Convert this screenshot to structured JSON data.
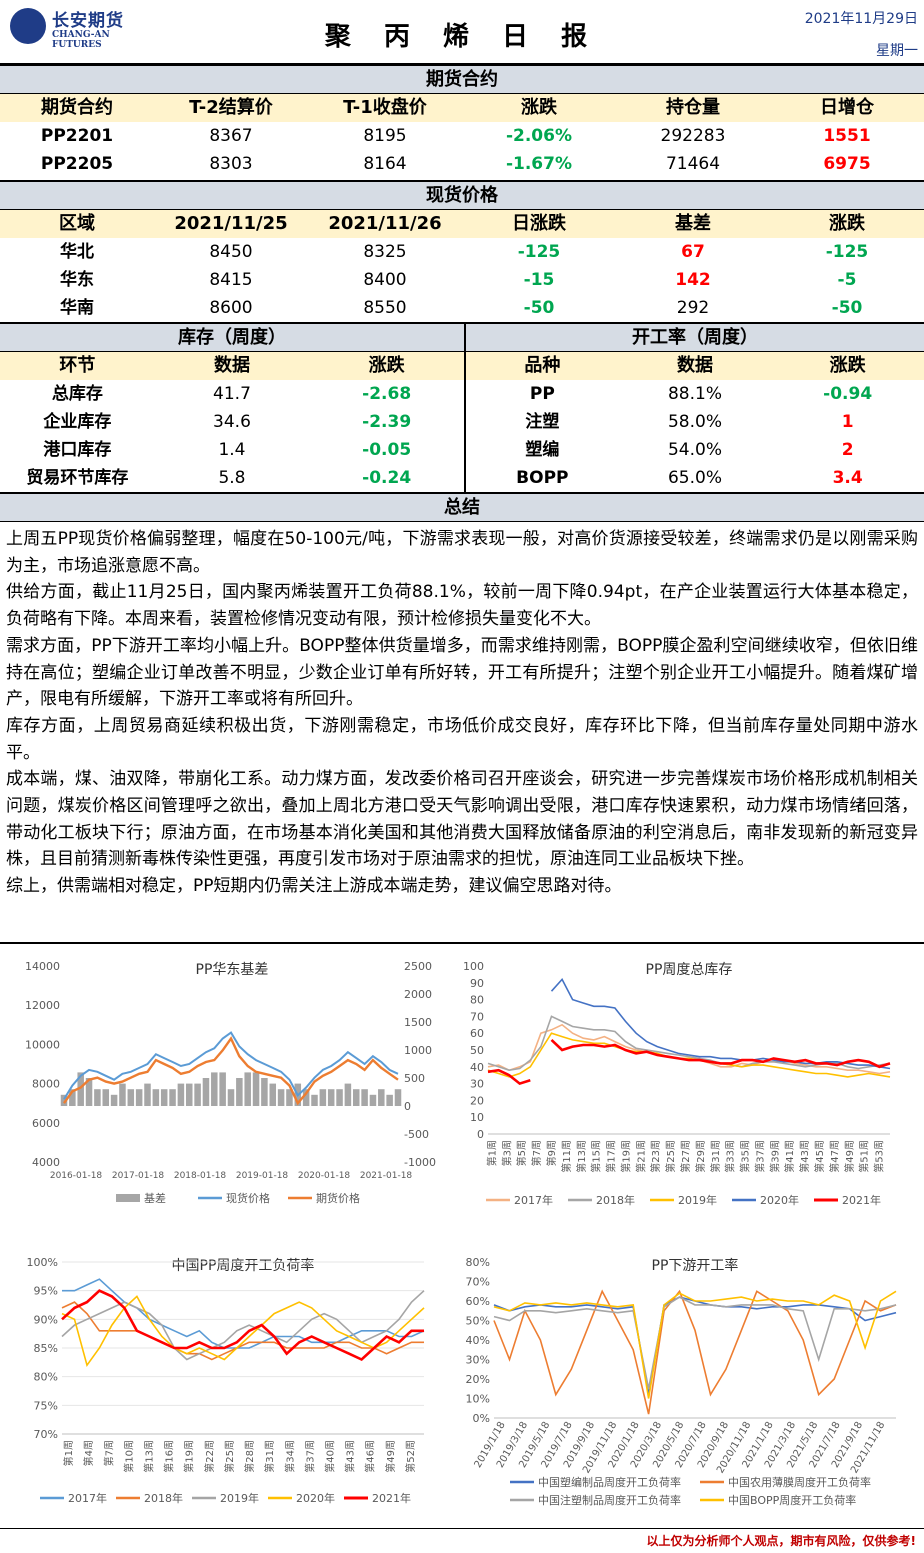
{
  "header": {
    "logo_cn": "长安期货",
    "logo_en": "CHANG-AN FUTURES",
    "title": "聚 丙 烯 日 报",
    "date": "2021年11月29日",
    "weekday": "星期一"
  },
  "futures": {
    "title": "期货合约",
    "columns": [
      "期货合约",
      "T-2结算价",
      "T-1收盘价",
      "涨跌",
      "持仓量",
      "日增仓"
    ],
    "rows": [
      {
        "contract": "PP2201",
        "settle": "8367",
        "close": "8195",
        "change": "-2.06%",
        "oi": "292283",
        "oi_change": "1551"
      },
      {
        "contract": "PP2205",
        "settle": "8303",
        "close": "8164",
        "change": "-1.67%",
        "oi": "71464",
        "oi_change": "6975"
      }
    ]
  },
  "spot": {
    "title": "现货价格",
    "columns": [
      "区域",
      "2021/11/25",
      "2021/11/26",
      "日涨跌",
      "基差",
      "涨跌"
    ],
    "rows": [
      {
        "region": "华北",
        "p1": "8450",
        "p2": "8325",
        "chg": "-125",
        "basis": "67",
        "basis_chg": "-125"
      },
      {
        "region": "华东",
        "p1": "8415",
        "p2": "8400",
        "chg": "-15",
        "basis": "142",
        "basis_chg": "-5"
      },
      {
        "region": "华南",
        "p1": "8600",
        "p2": "8550",
        "chg": "-50",
        "basis": "292",
        "basis_chg": "-50"
      }
    ]
  },
  "inventory": {
    "title": "库存（周度）",
    "columns": [
      "环节",
      "数据",
      "涨跌"
    ],
    "rows": [
      {
        "name": "总库存",
        "value": "41.7",
        "chg": "-2.68"
      },
      {
        "name": "企业库存",
        "value": "34.6",
        "chg": "-2.39"
      },
      {
        "name": "港口库存",
        "value": "1.4",
        "chg": "-0.05"
      },
      {
        "name": "贸易环节库存",
        "value": "5.8",
        "chg": "-0.24"
      }
    ]
  },
  "operating": {
    "title": "开工率（周度）",
    "columns": [
      "品种",
      "数据",
      "涨跌"
    ],
    "rows": [
      {
        "name": "PP",
        "value": "88.1%",
        "chg": "-0.94"
      },
      {
        "name": "注塑",
        "value": "58.0%",
        "chg": "1"
      },
      {
        "name": "塑编",
        "value": "54.0%",
        "chg": "2"
      },
      {
        "name": "BOPP",
        "value": "65.0%",
        "chg": "3.4"
      }
    ]
  },
  "summary": {
    "title": "总结",
    "paragraphs": [
      "上周五PP现货价格偏弱整理，幅度在50-100元/吨，下游需求表现一般，对高价货源接受较差，终端需求仍是以刚需采购为主，市场追涨意愿不高。",
      "供给方面，截止11月25日，国内聚丙烯装置开工负荷88.1%，较前一周下降0.94pt，在产企业装置运行大体基本稳定，负荷略有下降。本周来看，装置检修情况变动有限，预计检修损失量变化不大。",
      "需求方面，PP下游开工率均小幅上升。BOPP整体供货量增多，而需求维持刚需，BOPP膜企盈利空间继续收窄，但依旧维持在高位；塑编企业订单改善不明显，少数企业订单有所好转，开工有所提升；注塑个别企业开工小幅提升。随着煤矿增产，限电有所缓解，下游开工率或将有所回升。",
      "库存方面，上周贸易商延续积极出货，下游刚需稳定，市场低价成交良好，库存环比下降，但当前库存量处同期中游水平。",
      "成本端，煤、油双降，带崩化工系。动力煤方面，发改委价格司召开座谈会，研究进一步完善煤炭市场价格形成机制相关问题，煤炭价格区间管理呼之欲出，叠加上周北方港口受天气影响调出受限，港口库存快速累积，动力煤市场情绪回落，带动化工板块下行；原油方面，在市场基本消化美国和其他消费大国释放储备原油的利空消息后，南非发现新的新冠变异株，且目前猜测新毒株传染性更强，再度引发市场对于原油需求的担忧，原油连同工业品板块下挫。",
      "综上，供需端相对稳定，PP短期内仍需关注上游成本端走势，建议偏空思路对待。"
    ]
  },
  "footer": "以上仅为分析师个人观点，期市有风险，仅供参考!",
  "chart_data": [
    {
      "type": "line",
      "title": "PP华东基差",
      "x_ticks": [
        "2016-01-18",
        "2017-01-18",
        "2018-01-18",
        "2019-01-18",
        "2020-01-18",
        "2021-01-18"
      ],
      "y_left": [
        4000,
        6000,
        8000,
        10000,
        12000,
        14000
      ],
      "y_left_labels": [
        "4000",
        "6000",
        "8000",
        "10000",
        "12000",
        "14000"
      ],
      "ylim_left": [
        4000,
        14000
      ],
      "y_right": [
        -1000,
        -500,
        0,
        500,
        1000,
        1500,
        2000,
        2500
      ],
      "y_right_labels": [
        "-1000",
        "-500",
        "0",
        "500",
        "1000",
        "1500",
        "2000",
        "2500"
      ],
      "ylim_right": [
        -1000,
        2500
      ],
      "legend": [
        "基差",
        "现货价格",
        "期货价格"
      ],
      "colors": [
        "#a6a6a6",
        "#5b9bd5",
        "#ed7d31"
      ],
      "series_spot": [
        7200,
        7900,
        8400,
        8700,
        8600,
        8400,
        8200,
        8500,
        8600,
        8800,
        9000,
        9500,
        9300,
        9100,
        8900,
        9000,
        9300,
        9600,
        9800,
        10300,
        10600,
        9900,
        9500,
        9200,
        9000,
        8800,
        8600,
        8200,
        7400,
        7800,
        8300,
        8700,
        8900,
        9200,
        9600,
        9300,
        9000,
        9400,
        9100,
        8700,
        8500
      ],
      "series_fut": [
        7000,
        7600,
        7800,
        8200,
        8300,
        8100,
        8000,
        8100,
        8300,
        8500,
        8600,
        9200,
        9000,
        8800,
        8500,
        8600,
        8900,
        9100,
        9200,
        9700,
        10300,
        9400,
        8900,
        8600,
        8500,
        8400,
        8300,
        7900,
        7000,
        7500,
        8100,
        8400,
        8600,
        8900,
        9200,
        9000,
        8700,
        9200,
        8800,
        8500,
        8200
      ],
      "series_basis": [
        200,
        300,
        600,
        500,
        300,
        300,
        200,
        400,
        300,
        300,
        400,
        300,
        300,
        300,
        400,
        400,
        400,
        500,
        600,
        600,
        300,
        500,
        600,
        600,
        500,
        400,
        300,
        300,
        400,
        300,
        200,
        300,
        300,
        300,
        400,
        300,
        300,
        200,
        300,
        200,
        300
      ]
    },
    {
      "type": "line",
      "title": "PP周度总库存",
      "x_ticks": [
        "第1周",
        "第3周",
        "第5周",
        "第7周",
        "第9周",
        "第11周",
        "第13周",
        "第15周",
        "第17周",
        "第19周",
        "第21周",
        "第23周",
        "第25周",
        "第27周",
        "第29周",
        "第31周",
        "第33周",
        "第35周",
        "第37周",
        "第39周",
        "第41周",
        "第43周",
        "第45周",
        "第47周",
        "第49周",
        "第51周",
        "第53周"
      ],
      "y_ticks": [
        "0",
        "10",
        "20",
        "30",
        "40",
        "50",
        "60",
        "70",
        "80",
        "90",
        "100"
      ],
      "ylim": [
        0,
        100
      ],
      "legend": [
        "2017年",
        "2018年",
        "2019年",
        "2020年",
        "2021年"
      ],
      "colors": [
        "#f4b183",
        "#a6a6a6",
        "#ffc000",
        "#4472c4",
        "#ff0000"
      ],
      "series": [
        {
          "name": "2017年",
          "values": [
            40,
            41,
            38,
            40,
            43,
            60,
            62,
            65,
            60,
            57,
            56,
            58,
            55,
            52,
            50,
            49,
            47,
            46,
            45,
            44,
            44,
            42,
            40,
            40,
            42,
            41,
            43,
            43,
            44,
            42,
            41,
            40,
            40,
            39,
            38,
            38,
            37,
            36,
            37
          ]
        },
        {
          "name": "2018年",
          "values": [
            42,
            40,
            38,
            39,
            44,
            52,
            70,
            67,
            64,
            63,
            62,
            62,
            61,
            55,
            51,
            50,
            49,
            48,
            47,
            46,
            45,
            44,
            42,
            41,
            40,
            42,
            43,
            43,
            42,
            41,
            40,
            41,
            42,
            42,
            40,
            39,
            40,
            41,
            42
          ]
        },
        {
          "name": "2019年",
          "values": [
            38,
            36,
            34,
            36,
            40,
            50,
            60,
            58,
            56,
            55,
            54,
            54,
            52,
            50,
            49,
            49,
            48,
            46,
            45,
            45,
            44,
            43,
            42,
            41,
            40,
            41,
            41,
            40,
            39,
            38,
            37,
            36,
            36,
            35,
            34,
            35,
            36,
            35,
            34
          ]
        },
        {
          "name": "2020年",
          "values": [
            null,
            null,
            null,
            null,
            null,
            null,
            85,
            92,
            80,
            78,
            76,
            76,
            75,
            67,
            60,
            55,
            52,
            50,
            48,
            47,
            46,
            46,
            45,
            45,
            44,
            44,
            45,
            44,
            43,
            43,
            42,
            42,
            43,
            43,
            42,
            41,
            41,
            40,
            39
          ]
        },
        {
          "name": "2021年",
          "values": [
            37,
            38,
            35,
            30,
            32,
            null,
            56,
            50,
            52,
            53,
            53,
            52,
            53,
            50,
            48,
            49,
            47,
            46,
            45,
            44,
            44,
            43,
            42,
            42,
            44,
            44,
            43,
            45,
            44,
            43,
            44,
            42,
            42,
            41,
            43,
            44,
            43,
            40,
            42
          ]
        }
      ]
    },
    {
      "type": "line",
      "title": "中国PP周度开工负荷率",
      "x_ticks": [
        "第1周",
        "第4周",
        "第7周",
        "第10周",
        "第13周",
        "第16周",
        "第19周",
        "第22周",
        "第25周",
        "第28周",
        "第31周",
        "第34周",
        "第37周",
        "第40周",
        "第43周",
        "第46周",
        "第49周",
        "第52周"
      ],
      "y_ticks": [
        "70%",
        "75%",
        "80%",
        "85%",
        "90%",
        "95%",
        "100%"
      ],
      "ylim": [
        70,
        100
      ],
      "legend": [
        "2017年",
        "2018年",
        "2019年",
        "2020年",
        "2021年"
      ],
      "colors": [
        "#5b9bd5",
        "#ed7d31",
        "#a5a5a5",
        "#ffc000",
        "#ff0000"
      ],
      "series": [
        {
          "name": "2017年",
          "values": [
            95,
            95,
            96,
            97,
            95,
            93,
            92,
            90,
            89,
            88,
            87,
            88,
            86,
            85,
            85,
            85,
            86,
            87,
            87,
            87,
            86,
            86,
            86,
            87,
            88,
            88,
            88,
            87,
            87,
            88
          ]
        },
        {
          "name": "2018年",
          "values": [
            92,
            93,
            91,
            88,
            88,
            88,
            88,
            87,
            86,
            85,
            84,
            84,
            83,
            84,
            85,
            86,
            86,
            86,
            85,
            85,
            85,
            85,
            86,
            86,
            85,
            85,
            84,
            85,
            86,
            86
          ]
        },
        {
          "name": "2019年",
          "values": [
            87,
            89,
            90,
            91,
            92,
            93,
            92,
            91,
            89,
            85,
            83,
            84,
            85,
            86,
            88,
            89,
            88,
            87,
            86,
            88,
            90,
            91,
            90,
            88,
            86,
            87,
            88,
            90,
            93,
            95
          ]
        },
        {
          "name": "2020年",
          "values": [
            91,
            90,
            82,
            85,
            89,
            92,
            94,
            90,
            87,
            85,
            84,
            85,
            84,
            83,
            85,
            87,
            89,
            91,
            92,
            93,
            92,
            90,
            88,
            87,
            86,
            85,
            86,
            88,
            90,
            92
          ]
        },
        {
          "name": "2021年",
          "values": [
            90,
            92,
            93,
            95,
            94,
            92,
            88,
            87,
            86,
            85,
            85,
            86,
            85,
            85,
            86,
            88,
            89,
            87,
            84,
            86,
            87,
            86,
            85,
            84,
            83,
            85,
            87,
            86,
            88,
            88
          ]
        }
      ]
    },
    {
      "type": "line",
      "title": "PP下游开工率",
      "x_ticks": [
        "2019/1/18",
        "2019/3/18",
        "2019/5/18",
        "2019/7/18",
        "2019/9/18",
        "2019/11/18",
        "2020/1/18",
        "2020/3/18",
        "2020/5/18",
        "2020/7/18",
        "2020/9/18",
        "2020/11/18",
        "2021/1/18",
        "2021/3/18",
        "2021/5/18",
        "2021/7/18",
        "2021/9/18",
        "2021/11/18"
      ],
      "y_ticks": [
        "0%",
        "10%",
        "20%",
        "30%",
        "40%",
        "50%",
        "60%",
        "70%",
        "80%"
      ],
      "ylim": [
        0,
        80
      ],
      "legend": [
        "中国塑编制品周度开工负荷率",
        "中国农用薄膜周度开工负荷率",
        "中国注塑制品周度开工负荷率",
        "中国BOPP周度开工负荷率"
      ],
      "colors": [
        "#4472c4",
        "#ed7d31",
        "#a5a5a5",
        "#ffc000"
      ],
      "series": [
        {
          "name": "中国塑编制品周度开工负荷率",
          "values": [
            58,
            55,
            57,
            58,
            57,
            57,
            58,
            57,
            56,
            57,
            12,
            58,
            62,
            60,
            58,
            57,
            57,
            56,
            57,
            57,
            58,
            58,
            57,
            56,
            50,
            52,
            54
          ]
        },
        {
          "name": "中国农用薄膜周度开工负荷率",
          "values": [
            50,
            30,
            55,
            40,
            12,
            25,
            45,
            65,
            50,
            35,
            2,
            55,
            65,
            45,
            12,
            25,
            45,
            65,
            60,
            55,
            40,
            12,
            20,
            40,
            60,
            55,
            58
          ]
        },
        {
          "name": "中国注塑制品周度开工负荷率",
          "values": [
            52,
            50,
            55,
            55,
            54,
            55,
            56,
            55,
            54,
            55,
            15,
            57,
            62,
            58,
            58,
            57,
            58,
            58,
            58,
            56,
            55,
            30,
            56,
            56,
            55,
            56,
            58
          ]
        },
        {
          "name": "中国BOPP周度开工负荷率",
          "values": [
            57,
            55,
            59,
            58,
            59,
            58,
            59,
            58,
            57,
            58,
            10,
            58,
            64,
            60,
            60,
            61,
            62,
            60,
            61,
            60,
            60,
            58,
            63,
            60,
            36,
            60,
            65
          ]
        }
      ]
    }
  ]
}
